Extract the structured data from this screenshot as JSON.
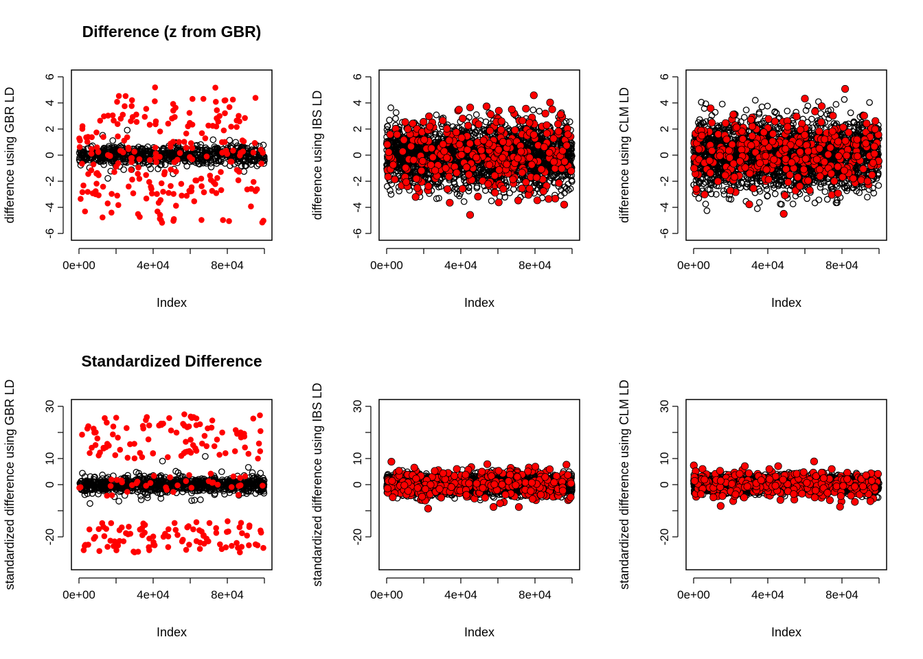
{
  "figure": {
    "titles": [
      "Difference (z from GBR)",
      "Standardized Difference"
    ],
    "xlabel": "Index",
    "x_ticks": [
      "0e+00",
      "4e+04",
      "8e+04"
    ],
    "colors": {
      "background_points": "#000000",
      "highlight_points": "#ff0000",
      "axis": "#000000"
    }
  },
  "chart_data": [
    {
      "type": "scatter",
      "title": "Difference (z from GBR)",
      "xlabel": "Index",
      "ylabel": "difference using GBR LD",
      "xlim": [
        0,
        100000
      ],
      "ylim": [
        -6,
        6
      ],
      "x_ticks": [
        0,
        40000,
        80000
      ],
      "x_tick_labels": [
        "0e+00",
        "4e+04",
        "8e+04"
      ],
      "y_ticks": [
        -6,
        -4,
        -2,
        0,
        2,
        4,
        6
      ],
      "series": [
        {
          "role": "background",
          "color": "#000000",
          "marker": "open-circle",
          "n": 100000,
          "center": 0,
          "spread": 1.2
        },
        {
          "role": "highlight",
          "color": "#ff0000",
          "marker": "filled-circle",
          "n": 200,
          "center": 0,
          "spread": 5.2
        }
      ]
    },
    {
      "type": "scatter",
      "title": "",
      "xlabel": "Index",
      "ylabel": "difference using IBS LD",
      "xlim": [
        0,
        100000
      ],
      "ylim": [
        -6,
        6
      ],
      "x_ticks": [
        0,
        40000,
        80000
      ],
      "x_tick_labels": [
        "0e+00",
        "4e+04",
        "8e+04"
      ],
      "y_ticks": [
        -6,
        -4,
        -2,
        0,
        2,
        4,
        6
      ],
      "series": [
        {
          "role": "background",
          "color": "#000000",
          "marker": "open-circle",
          "n": 100000,
          "center": 0,
          "spread": 3.8
        },
        {
          "role": "highlight",
          "color": "#ff0000",
          "marker": "filled-circle",
          "n": 400,
          "center": 0,
          "spread": 5.0
        }
      ]
    },
    {
      "type": "scatter",
      "title": "",
      "xlabel": "Index",
      "ylabel": "difference using CLM LD",
      "xlim": [
        0,
        100000
      ],
      "ylim": [
        -6,
        6
      ],
      "x_ticks": [
        0,
        40000,
        80000
      ],
      "x_tick_labels": [
        "0e+00",
        "4e+04",
        "8e+04"
      ],
      "y_ticks": [
        -6,
        -4,
        -2,
        0,
        2,
        4,
        6
      ],
      "series": [
        {
          "role": "background",
          "color": "#000000",
          "marker": "open-circle",
          "n": 100000,
          "center": 0,
          "spread": 4.3
        },
        {
          "role": "highlight",
          "color": "#ff0000",
          "marker": "filled-circle",
          "n": 400,
          "center": 0,
          "spread": 4.6
        }
      ]
    },
    {
      "type": "scatter",
      "title": "Standardized Difference",
      "xlabel": "Index",
      "ylabel": "standardized difference using GBR LD",
      "xlim": [
        0,
        100000
      ],
      "ylim": [
        -30,
        30
      ],
      "x_ticks": [
        0,
        40000,
        80000
      ],
      "x_tick_labels": [
        "0e+00",
        "4e+04",
        "8e+04"
      ],
      "y_ticks": [
        -20,
        -10,
        0,
        10,
        20,
        30
      ],
      "y_tick_labels": [
        "-20",
        "",
        "0",
        "10",
        "",
        "30"
      ],
      "series": [
        {
          "role": "background",
          "color": "#000000",
          "marker": "open-circle",
          "n": 100000,
          "center": 0,
          "spread": 6
        },
        {
          "role": "highlight",
          "color": "#ff0000",
          "marker": "filled-circle",
          "n": 200,
          "center": 0,
          "spread": 27
        }
      ]
    },
    {
      "type": "scatter",
      "title": "",
      "xlabel": "Index",
      "ylabel": "standardized difference using IBS LD",
      "xlim": [
        0,
        100000
      ],
      "ylim": [
        -30,
        30
      ],
      "x_ticks": [
        0,
        40000,
        80000
      ],
      "x_tick_labels": [
        "0e+00",
        "4e+04",
        "8e+04"
      ],
      "y_ticks": [
        -20,
        -10,
        0,
        10,
        20,
        30
      ],
      "y_tick_labels": [
        "-20",
        "",
        "0",
        "10",
        "",
        "30"
      ],
      "series": [
        {
          "role": "background",
          "color": "#000000",
          "marker": "open-circle",
          "n": 100000,
          "center": 0,
          "spread": 6
        },
        {
          "role": "highlight",
          "color": "#ff0000",
          "marker": "filled-circle",
          "n": 400,
          "center": 0,
          "spread": 10
        }
      ]
    },
    {
      "type": "scatter",
      "title": "",
      "xlabel": "Index",
      "ylabel": "standardized difference using CLM LD",
      "xlim": [
        0,
        100000
      ],
      "ylim": [
        -30,
        30
      ],
      "x_ticks": [
        0,
        40000,
        80000
      ],
      "x_tick_labels": [
        "0e+00",
        "4e+04",
        "8e+04"
      ],
      "y_ticks": [
        -20,
        -10,
        0,
        10,
        20,
        30
      ],
      "y_tick_labels": [
        "-20",
        "",
        "0",
        "10",
        "",
        "30"
      ],
      "series": [
        {
          "role": "background",
          "color": "#000000",
          "marker": "open-circle",
          "n": 100000,
          "center": 0,
          "spread": 5
        },
        {
          "role": "highlight",
          "color": "#ff0000",
          "marker": "filled-circle",
          "n": 400,
          "center": 0,
          "spread": 9
        }
      ]
    }
  ]
}
